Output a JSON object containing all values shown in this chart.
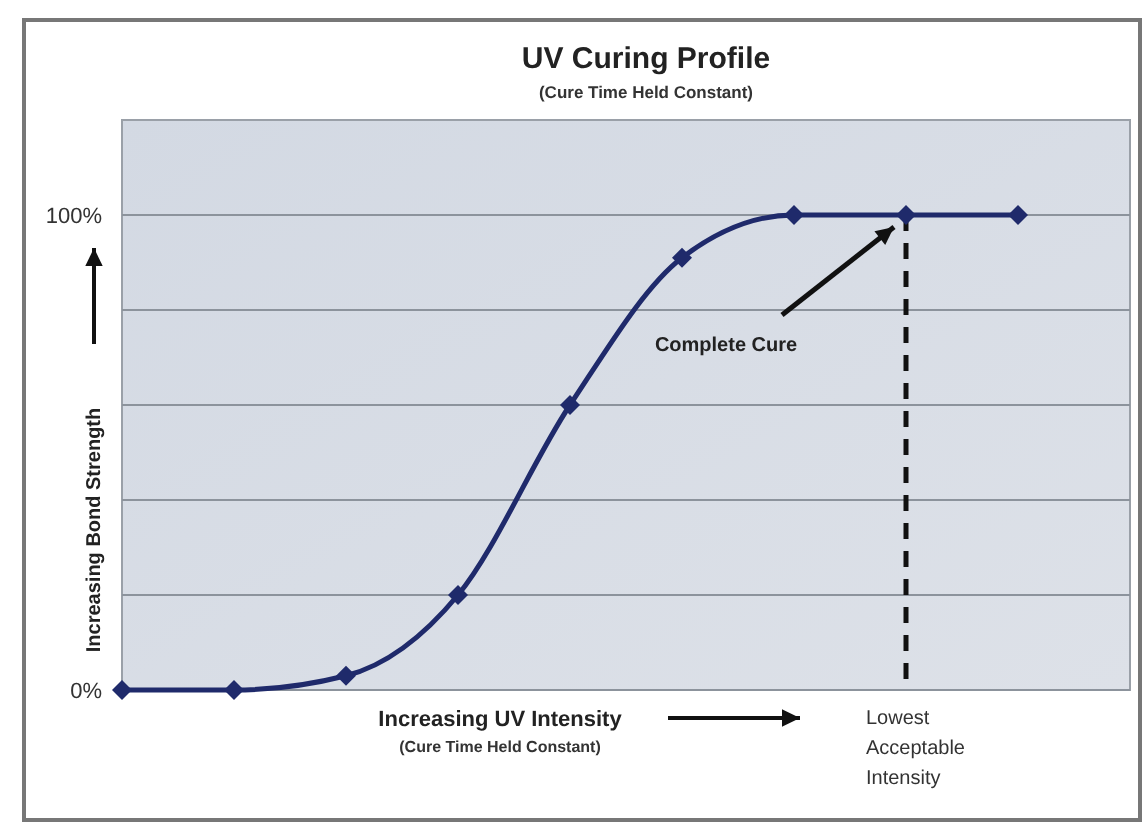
{
  "chart_data": {
    "type": "line",
    "title": "UV Curing Profile",
    "subtitle": "(Cure Time Held Constant)",
    "xlabel": "Increasing UV Intensity",
    "ylabel": "Increasing Bond Strength",
    "annotations": [
      "Complete Cure",
      "(Cure Time Held Constant)",
      "Lowest Acceptable Intensity"
    ],
    "categories": [
      null,
      null,
      null,
      null,
      null,
      null,
      null,
      null,
      null
    ],
    "series": [
      {
        "color": "#1f2a6b",
        "values": [
          0,
          0,
          3,
          20,
          60,
          91,
          100,
          100,
          100
        ]
      }
    ],
    "ylim": [
      0,
      120
    ],
    "yticks": [
      {
        "value": 0,
        "label": "0%"
      },
      {
        "value": 20,
        "label": null
      },
      {
        "value": 40,
        "label": null
      },
      {
        "value": 60,
        "label": null
      },
      {
        "value": 80,
        "label": null
      },
      {
        "value": 100,
        "label": "100%"
      }
    ],
    "grid": "y",
    "marker": "diamond",
    "line_style": "solid"
  }
}
